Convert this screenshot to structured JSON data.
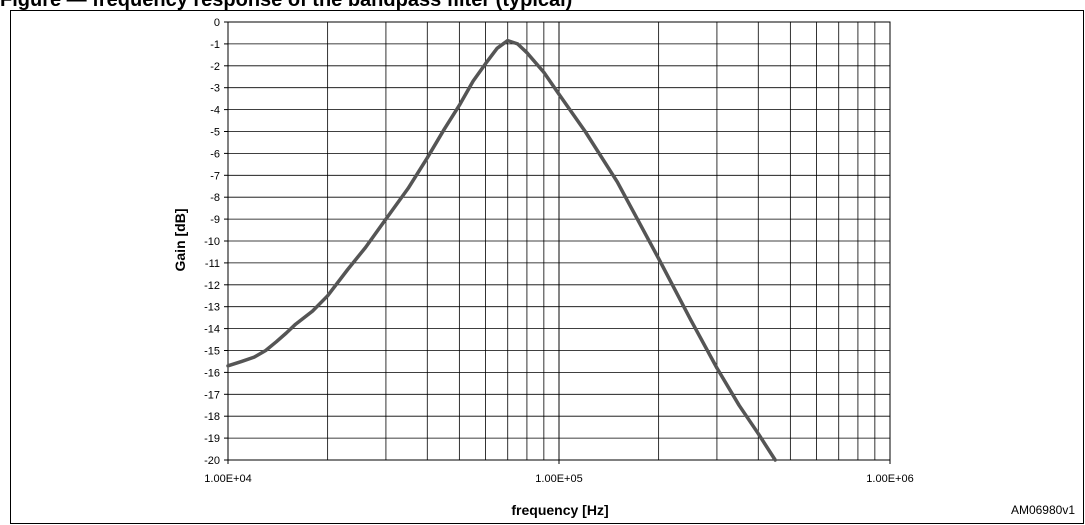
{
  "figure_caption": "Figure — frequency response of the bandpass filter (typical)",
  "watermark": "AM06980v1",
  "chart_data": {
    "type": "line",
    "title": "",
    "xlabel": "frequency [Hz]",
    "ylabel": "Gain [dB]",
    "x_scale": "log",
    "xlim": [
      10000,
      1000000
    ],
    "ylim": [
      -20,
      0
    ],
    "x_ticks": [
      10000,
      100000,
      1000000
    ],
    "x_tick_labels": [
      "1.00E+04",
      "1.00E+05",
      "1.00E+06"
    ],
    "y_ticks": [
      0,
      -1,
      -2,
      -3,
      -4,
      -5,
      -6,
      -7,
      -8,
      -9,
      -10,
      -11,
      -12,
      -13,
      -14,
      -15,
      -16,
      -17,
      -18,
      -19,
      -20
    ],
    "y_tick_labels": [
      "0",
      "-1",
      "-2",
      "-3",
      "-4",
      "-5",
      "-6",
      "-7",
      "-8",
      "-9",
      "-10",
      "-11",
      "-12",
      "-13",
      "-14",
      "-15",
      "-16",
      "-17",
      "-18",
      "-19",
      "-20"
    ],
    "grid": true,
    "legend": "none",
    "series": [
      {
        "color": "#555555",
        "x": [
          10000,
          11000,
          12000,
          13000,
          14000,
          15000,
          16000,
          18000,
          20000,
          23000,
          26000,
          30000,
          35000,
          40000,
          45000,
          50000,
          55000,
          60000,
          65000,
          70000,
          75000,
          80000,
          90000,
          100000,
          120000,
          150000,
          200000,
          250000,
          300000,
          350000,
          400000,
          450000
        ],
        "y": [
          -15.7,
          -15.5,
          -15.3,
          -15.0,
          -14.6,
          -14.2,
          -13.8,
          -13.2,
          -12.5,
          -11.3,
          -10.3,
          -9.0,
          -7.6,
          -6.2,
          -4.9,
          -3.8,
          -2.7,
          -1.9,
          -1.2,
          -0.85,
          -1.0,
          -1.4,
          -2.3,
          -3.3,
          -5.0,
          -7.3,
          -10.8,
          -13.6,
          -15.8,
          -17.5,
          -18.8,
          -20.0
        ]
      }
    ]
  }
}
